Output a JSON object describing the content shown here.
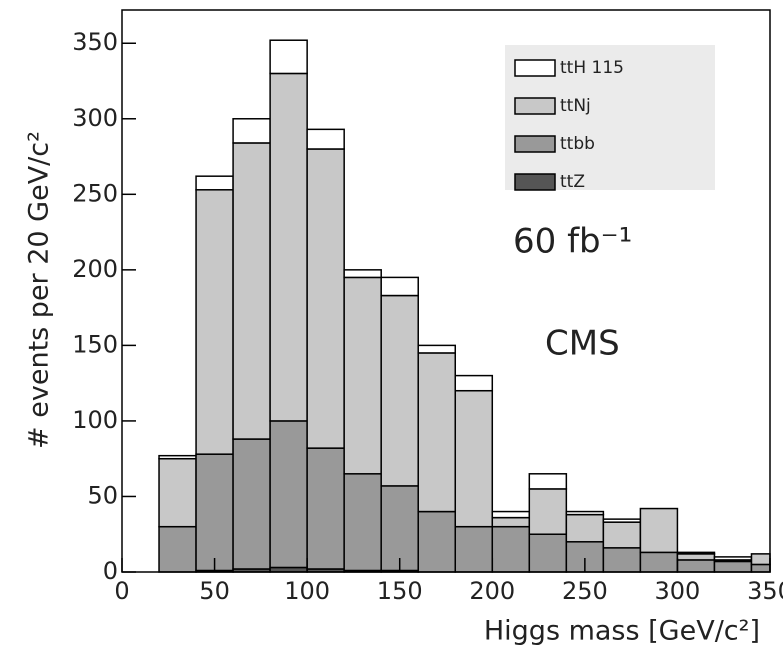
{
  "chart_data": {
    "type": "stacked_histogram",
    "x_label": "Higgs mass [GeV/c²]",
    "y_label": "# events per 20 GeV/c²",
    "annotations": [
      "60 fb⁻¹",
      "CMS"
    ],
    "bins": [
      20,
      40,
      60,
      80,
      100,
      120,
      140,
      160,
      180,
      200,
      220,
      240,
      260,
      280,
      300,
      320,
      340,
      350
    ],
    "series": [
      {
        "name": "ttZ",
        "color": "#555555",
        "values": [
          0,
          1,
          2,
          3,
          2,
          1,
          1,
          0,
          0,
          0,
          0,
          0,
          0,
          0,
          0,
          0,
          0
        ]
      },
      {
        "name": "ttbb",
        "color": "#999999",
        "values": [
          30,
          77,
          86,
          97,
          80,
          64,
          56,
          40,
          30,
          30,
          25,
          20,
          16,
          13,
          8,
          7,
          5
        ]
      },
      {
        "name": "ttNj",
        "color": "#c8c8c8",
        "values": [
          45,
          175,
          196,
          230,
          198,
          130,
          126,
          105,
          90,
          6,
          30,
          18,
          17,
          29,
          4,
          1,
          7
        ]
      },
      {
        "name": "ttH 115",
        "color": "#ffffff",
        "values": [
          2,
          9,
          16,
          22,
          13,
          5,
          12,
          5,
          10,
          4,
          10,
          2,
          2,
          0,
          1,
          2,
          0
        ]
      }
    ],
    "xlim": [
      0,
      350
    ],
    "xticks": [
      0,
      50,
      100,
      150,
      200,
      250,
      300,
      350
    ],
    "ylim": [
      0,
      372
    ],
    "yticks": [
      0,
      50,
      100,
      150,
      200,
      250,
      300,
      350
    ]
  }
}
